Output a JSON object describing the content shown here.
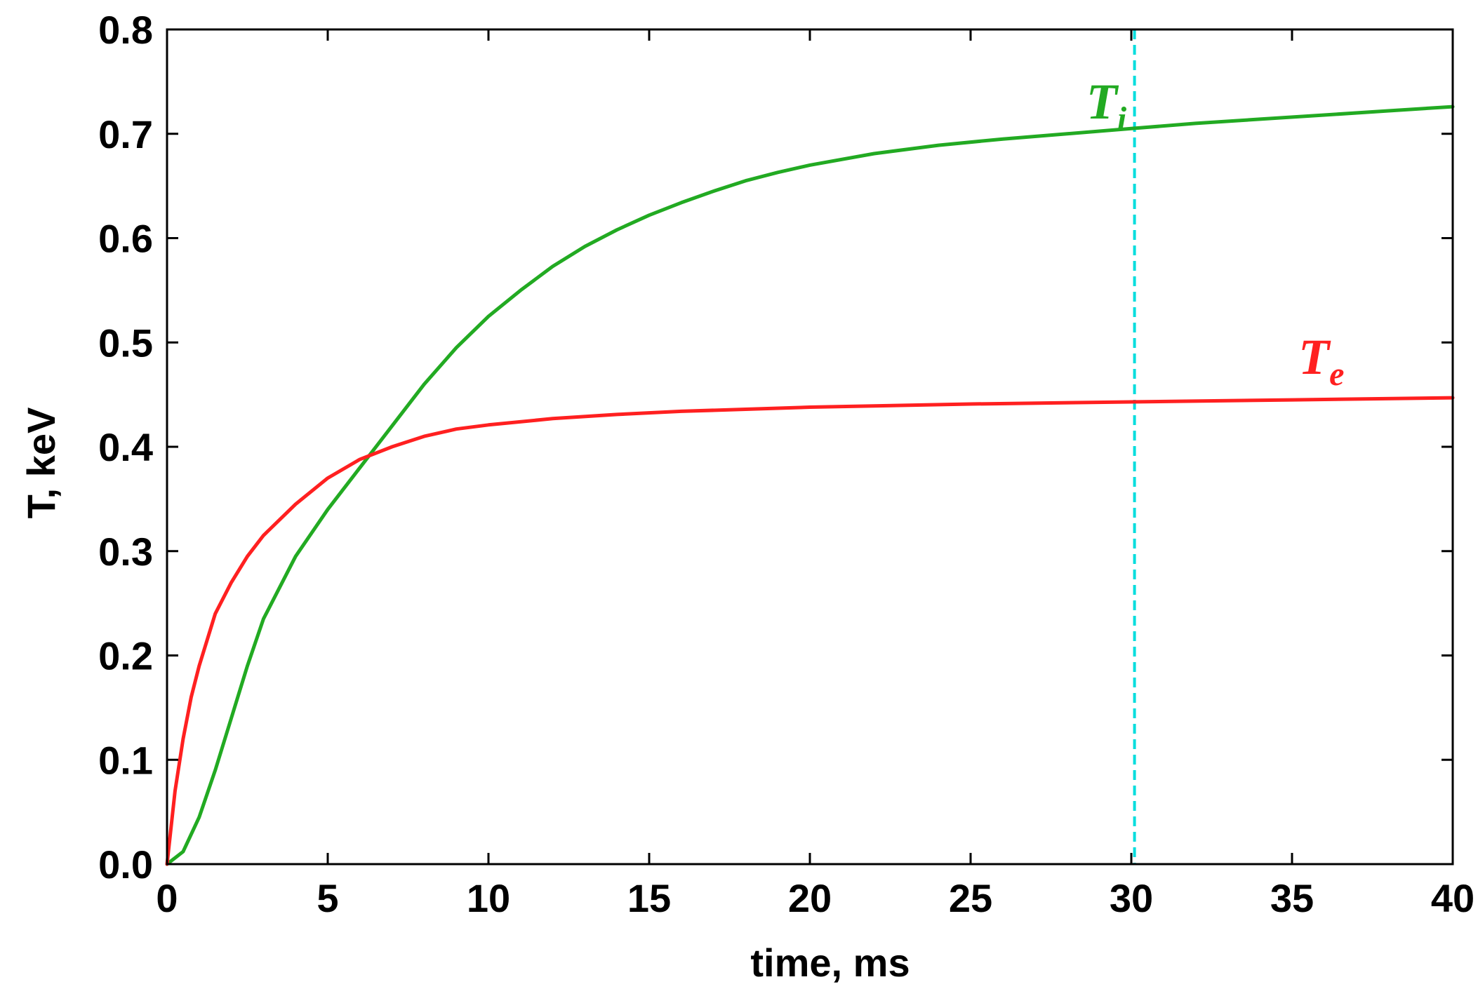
{
  "chart_data": {
    "type": "line",
    "xlabel": "time, ms",
    "ylabel": "T, keV",
    "xlim": [
      0,
      40
    ],
    "ylim": [
      0,
      0.8
    ],
    "xticks": [
      0,
      5,
      10,
      15,
      20,
      25,
      30,
      35,
      40
    ],
    "xtick_labels": [
      "0",
      "5",
      "10",
      "15",
      "20",
      "25",
      "30",
      "35",
      "40"
    ],
    "yticks": [
      0,
      0.1,
      0.2,
      0.3,
      0.4,
      0.5,
      0.6,
      0.7,
      0.8
    ],
    "ytick_labels": [
      "0.0",
      "0.1",
      "0.2",
      "0.3",
      "0.4",
      "0.5",
      "0.6",
      "0.7",
      "0.8"
    ],
    "grid": false,
    "series": [
      {
        "label_main": "T",
        "label_sub": "i",
        "color": "#22aa22",
        "label_x": 28.6,
        "label_y": 0.7,
        "x": [
          0,
          0.5,
          1,
          1.5,
          2,
          2.5,
          3,
          4,
          5,
          6,
          7,
          8,
          9,
          10,
          11,
          12,
          13,
          14,
          15,
          16,
          17,
          18,
          19,
          20,
          22,
          24,
          26,
          28,
          30,
          32,
          34,
          36,
          38,
          40
        ],
        "y": [
          0,
          0.012,
          0.045,
          0.09,
          0.14,
          0.19,
          0.235,
          0.295,
          0.34,
          0.38,
          0.42,
          0.46,
          0.495,
          0.525,
          0.55,
          0.573,
          0.592,
          0.608,
          0.622,
          0.634,
          0.645,
          0.655,
          0.663,
          0.67,
          0.681,
          0.689,
          0.695,
          0.7,
          0.705,
          0.71,
          0.714,
          0.718,
          0.722,
          0.726
        ]
      },
      {
        "label_main": "T",
        "label_sub": "e",
        "color": "#ff2020",
        "label_x": 35.2,
        "label_y": 0.455,
        "x": [
          0,
          0.25,
          0.5,
          0.75,
          1,
          1.5,
          2,
          2.5,
          3,
          4,
          5,
          6,
          7,
          8,
          9,
          10,
          12,
          14,
          16,
          18,
          20,
          25,
          30,
          35,
          40
        ],
        "y": [
          0,
          0.07,
          0.12,
          0.16,
          0.19,
          0.24,
          0.27,
          0.295,
          0.315,
          0.345,
          0.37,
          0.388,
          0.4,
          0.41,
          0.417,
          0.421,
          0.427,
          0.431,
          0.434,
          0.436,
          0.438,
          0.441,
          0.443,
          0.445,
          0.447
        ]
      }
    ],
    "vline": {
      "x": 30.1,
      "color": "#00dddd",
      "style": "dashed"
    }
  }
}
